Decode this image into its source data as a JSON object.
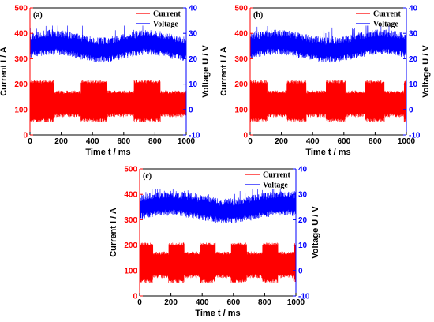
{
  "figure": {
    "background": "#ffffff",
    "current_color": "#ff0000",
    "voltage_color": "#0000ff",
    "axis_color": "#000000"
  },
  "chart_data": [
    {
      "type": "line",
      "panel": "(a)",
      "xlabel": "Time t / ms",
      "ylabel_left": "Current I / A",
      "ylabel_right": "Voltage U / V",
      "xlim": [
        0,
        1000
      ],
      "ylim_left": [
        0,
        500
      ],
      "ylim_right": [
        -10,
        40
      ],
      "x_ticks": [
        0,
        200,
        400,
        600,
        800,
        1000
      ],
      "y_ticks_left": [
        0,
        100,
        200,
        300,
        400,
        500
      ],
      "y_ticks_right": [
        -10,
        0,
        10,
        20,
        30,
        40
      ],
      "legend": "top-right",
      "series": [
        {
          "name": "Current",
          "axis": "left",
          "color": "#ff0000",
          "period_ms": 340,
          "high_fraction": 0.5,
          "high_level": [
            50,
            215
          ],
          "low_level": [
            70,
            175
          ]
        },
        {
          "name": "Voltage",
          "axis": "right",
          "color": "#0000ff",
          "baseline": [
            20,
            30
          ],
          "spikes_max": 33
        }
      ]
    },
    {
      "type": "line",
      "panel": "(b)",
      "xlabel": "Time t / ms",
      "ylabel_left": "Current I / A",
      "ylabel_right": "Voltage U / V",
      "xlim": [
        0,
        1000
      ],
      "ylim_left": [
        0,
        500
      ],
      "ylim_right": [
        -10,
        40
      ],
      "x_ticks": [
        0,
        200,
        400,
        600,
        800,
        1000
      ],
      "y_ticks_left": [
        0,
        100,
        200,
        300,
        400,
        500
      ],
      "y_ticks_right": [
        -10,
        0,
        10,
        20,
        30,
        40
      ],
      "legend": "top-right",
      "series": [
        {
          "name": "Current",
          "axis": "left",
          "color": "#ff0000",
          "period_ms": 250,
          "high_fraction": 0.5,
          "high_level": [
            50,
            215
          ],
          "low_level": [
            70,
            175
          ]
        },
        {
          "name": "Voltage",
          "axis": "right",
          "color": "#0000ff",
          "baseline": [
            20,
            30
          ],
          "spikes_max": 33
        }
      ]
    },
    {
      "type": "line",
      "panel": "(c)",
      "xlabel": "Time t / ms",
      "ylabel_left": "Current I / A",
      "ylabel_right": "Voltage U / V",
      "xlim": [
        0,
        1000
      ],
      "ylim_left": [
        0,
        500
      ],
      "ylim_right": [
        -10,
        40
      ],
      "x_ticks": [
        0,
        200,
        400,
        600,
        800,
        1000
      ],
      "y_ticks_left": [
        0,
        100,
        200,
        300,
        400,
        500
      ],
      "y_ticks_right": [
        -10,
        0,
        10,
        20,
        30,
        40
      ],
      "legend": "top-right",
      "series": [
        {
          "name": "Current",
          "axis": "left",
          "color": "#ff0000",
          "period_ms": 200,
          "high_fraction": 0.5,
          "high_level": [
            50,
            210
          ],
          "low_level": [
            70,
            175
          ]
        },
        {
          "name": "Voltage",
          "axis": "right",
          "color": "#0000ff",
          "baseline": [
            20,
            30
          ],
          "spikes_max": 32
        }
      ]
    }
  ]
}
